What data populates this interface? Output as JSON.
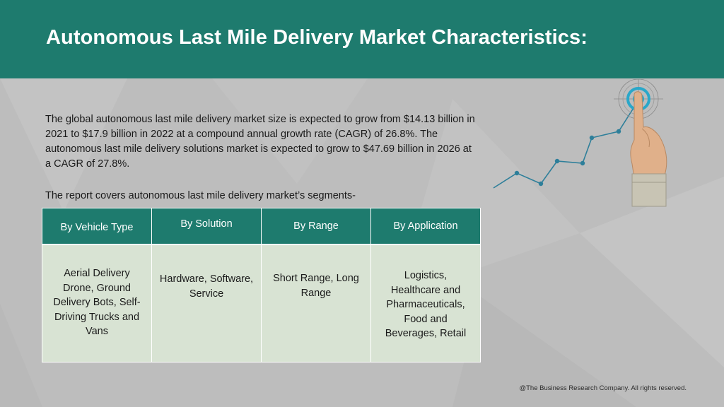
{
  "header": {
    "title": "Autonomous Last Mile Delivery Market Characteristics:"
  },
  "intro": {
    "text": "The global autonomous last mile delivery market size is expected to grow from $14.13 billion in 2021 to $17.9 billion in 2022 at a compound annual growth rate (CAGR) of 26.8%. The autonomous last mile delivery solutions market is expected to grow to $47.69 billion in 2026 at a CAGR of 27.8%."
  },
  "segments_note": "The report covers autonomous last mile delivery market’s segments-",
  "table": {
    "headers": [
      "By Vehicle Type",
      "By Solution",
      "By Range",
      "By Application"
    ],
    "cells": [
      "Aerial Delivery Drone, Ground Delivery Bots, Self-Driving Trucks and Vans",
      "Hardware, Software, Service",
      "Short Range, Long Range",
      "Logistics, Healthcare and Pharmaceuticals, Food and Beverages, Retail"
    ]
  },
  "graphic": {
    "icon": "growth-target-icon",
    "line_color": "#2e7f9a",
    "target_color": "#2aa7c9"
  },
  "footer": {
    "copyright": "@The Business Research Company. All rights reserved."
  },
  "colors": {
    "header_bg": "#1e7b6e",
    "page_bg": "#bdbdbd",
    "table_header_bg": "#1e7b6e",
    "table_cell_bg": "#d8e3d3"
  }
}
